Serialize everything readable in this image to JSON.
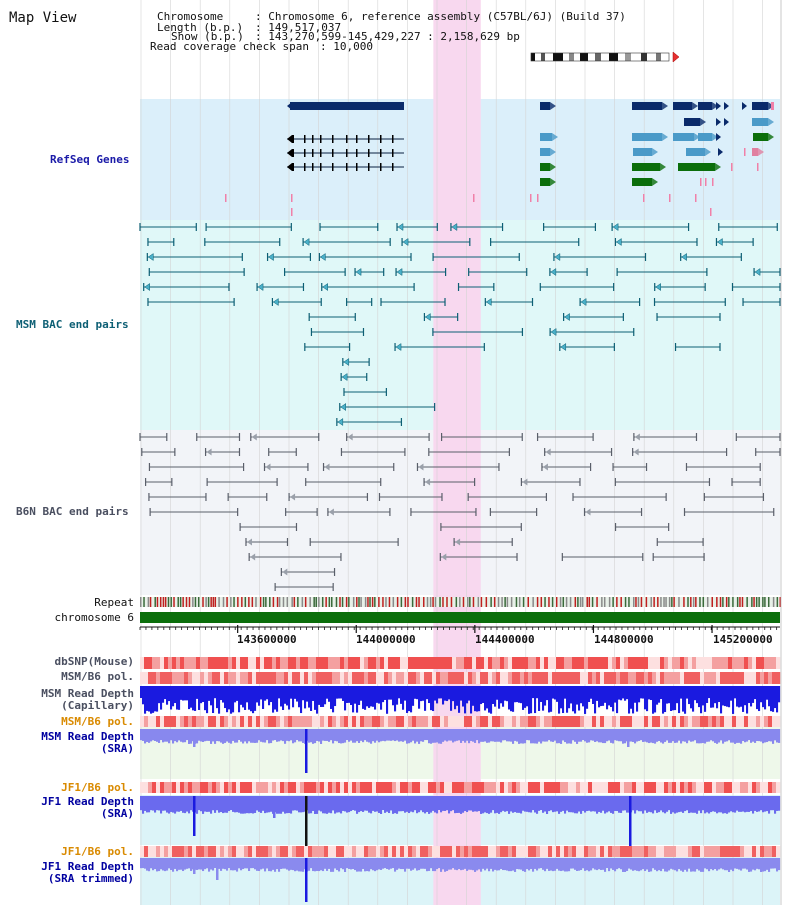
{
  "view_title": "Map View",
  "header": {
    "chromosome_key": "Chromosome",
    "chromosome_val": ": Chromosome 6, reference assembly (C57BL/6J) (Build 37)",
    "length_key": "Length (b.p.)",
    "length_val": ": 149,517,037",
    "show_key": "Show (b.p.)",
    "show_val": ": 143,270,599-145,429,227 : 2,158,629 bp",
    "coverage_key": "Read coverage check span",
    "coverage_val": ": 10,000"
  },
  "tracks": {
    "refseq": "RefSeq Genes",
    "msm_bac": "MSM BAC end pairs",
    "b6n_bac": "B6N BAC end pairs",
    "repeat": "Repeat",
    "chromosome": "chromosome 6",
    "dbsnp": "dbSNP(Mouse)",
    "msm_b6_pol_1": "MSM/B6 pol.",
    "msm_read_depth_cap_1": "MSM Read Depth",
    "msm_read_depth_cap_2": "(Capillary)",
    "msm_b6_pol_2": "MSM/B6 pol.",
    "msm_read_depth_sra_1": "MSM Read Depth",
    "msm_read_depth_sra_2": "(SRA)",
    "jf1_b6_pol_1": "JF1/B6 pol.",
    "jf1_read_depth_sra_1": "JF1 Read Depth",
    "jf1_read_depth_sra_2": "(SRA)",
    "jf1_b6_pol_2": "JF1/B6 pol.",
    "jf1_read_depth_trim_1": "JF1 Read Depth",
    "jf1_read_depth_trim_2": "(SRA trimmed)"
  },
  "axis": {
    "ticks": [
      "143600000",
      "144000000",
      "144400000",
      "144800000",
      "145200000"
    ],
    "tick_values": [
      143600000,
      144000000,
      144400000,
      144800000,
      145200000
    ],
    "start": 143270599,
    "end": 145429227
  },
  "highlight": {
    "start": 144260000,
    "end": 144420000
  },
  "colors": {
    "refseq_bg": "#dbeffa",
    "msm_bac_bg": "#e0f8f8",
    "b6n_bac_bg": "#f2f4f8",
    "highlight": "#f8d8ef",
    "gene_dark": "#0a2a6a",
    "gene_light": "#4a9ac8",
    "gene_green": "#0b6e0b",
    "chromosome": "#0b6e0b"
  }
}
